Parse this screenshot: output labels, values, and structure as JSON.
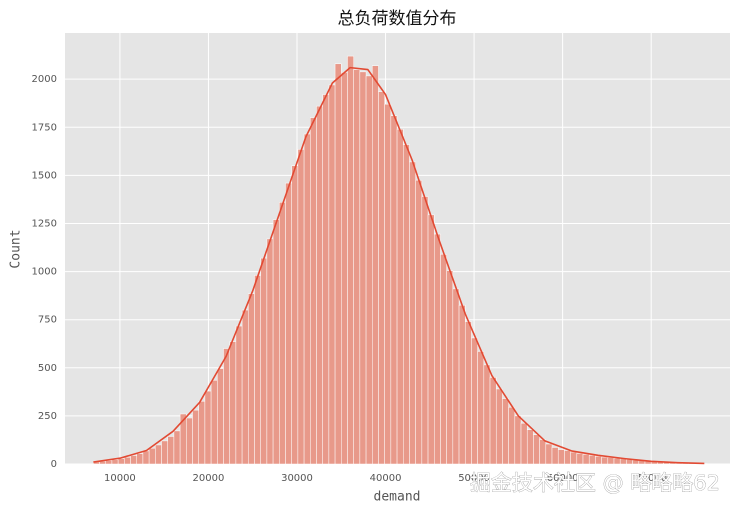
{
  "chart_data": {
    "type": "histogram",
    "title": "总负荷数值分布",
    "x_label": "demand",
    "y_label": "Count",
    "watermark": "掘金技术社区 @ 略略略62",
    "bins": [
      7000,
      7700,
      8400,
      9100,
      9800,
      10500,
      11200,
      11900,
      12600,
      13300,
      14000,
      14700,
      15400,
      16100,
      16800,
      17500,
      18200,
      18900,
      19600,
      20300,
      21000,
      21700,
      22400,
      23100,
      23800,
      24500,
      25200,
      25900,
      26600,
      27300,
      28000,
      28700,
      29400,
      30100,
      30800,
      31500,
      32200,
      32900,
      33600,
      34300,
      35000,
      35700,
      36400,
      37100,
      37800,
      38500,
      39200,
      39900,
      40600,
      41300,
      42000,
      42700,
      43400,
      44100,
      44800,
      45500,
      46200,
      46900,
      47600,
      48300,
      49000,
      49700,
      50400,
      51100,
      51800,
      52500,
      53200,
      53900,
      54600,
      55300,
      56000,
      56700,
      57400,
      58100,
      58800,
      59500,
      60200,
      60900,
      61600,
      62300,
      63000,
      63700,
      64400,
      65100,
      65800,
      66500,
      67200,
      67900,
      68600,
      69300,
      70000,
      70700,
      71400,
      72100,
      72800,
      73500,
      74200,
      74900,
      75600,
      76300
    ],
    "counts": [
      11,
      14,
      18,
      22,
      28,
      35,
      44,
      54,
      68,
      82,
      99,
      120,
      143,
      172,
      260,
      239,
      280,
      326,
      379,
      435,
      496,
      600,
      636,
      717,
      800,
      885,
      980,
      1070,
      1170,
      1270,
      1360,
      1460,
      1550,
      1635,
      1715,
      1800,
      1860,
      1920,
      1970,
      2080,
      2035,
      2120,
      2050,
      2038,
      2017,
      2070,
      1935,
      1870,
      1810,
      1740,
      1660,
      1570,
      1475,
      1390,
      1295,
      1195,
      1090,
      1005,
      910,
      825,
      740,
      655,
      585,
      515,
      450,
      390,
      340,
      295,
      250,
      212,
      178,
      152,
      127,
      104,
      86,
      75,
      70,
      62,
      55,
      50,
      45,
      40,
      36,
      34,
      30,
      27,
      24,
      20,
      17,
      15,
      13,
      11,
      9,
      8,
      6,
      5,
      4,
      3,
      2
    ],
    "color": "#e8998a",
    "kde": {
      "color": "#e24a33",
      "x": [
        7000,
        10000,
        13000,
        16000,
        19000,
        22000,
        25000,
        28000,
        31000,
        34000,
        36000,
        38000,
        40000,
        43000,
        46000,
        49000,
        52000,
        55000,
        58000,
        61000,
        64000,
        67000,
        70000,
        73000,
        76000
      ],
      "values": [
        10,
        30,
        70,
        170,
        320,
        560,
        900,
        1300,
        1700,
        1980,
        2060,
        2050,
        1920,
        1580,
        1170,
        780,
        460,
        250,
        120,
        68,
        45,
        28,
        14,
        7,
        3
      ]
    },
    "xlim": [
      3800,
      78900
    ],
    "ylim": [
      0,
      2240
    ],
    "xticks": [
      10000,
      20000,
      30000,
      40000,
      50000,
      60000,
      70000
    ],
    "yticks": [
      0,
      250,
      500,
      750,
      1000,
      1250,
      1500,
      1750,
      2000
    ],
    "grid": true
  }
}
